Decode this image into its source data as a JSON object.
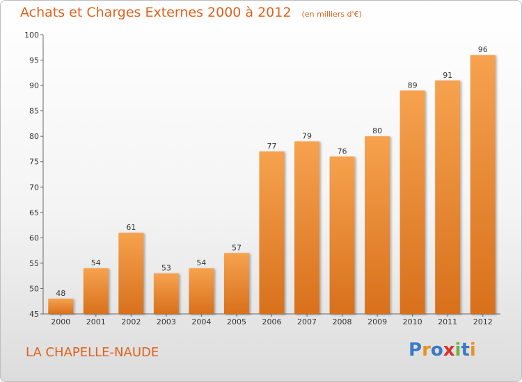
{
  "title": "Achats et Charges Externes 2000 à 2012",
  "unit": "(en milliers d'€)",
  "place": "LA CHAPELLE-NAUDE",
  "logo": {
    "text": "Proxiti",
    "letters": [
      {
        "ch": "P",
        "color": "#3a78c9"
      },
      {
        "ch": "r",
        "color": "#e8931f"
      },
      {
        "ch": "o",
        "color": "#3a78c9"
      },
      {
        "ch": "x",
        "color": "#d8322a"
      },
      {
        "ch": "i",
        "color": "#6cb33f"
      },
      {
        "ch": "t",
        "color": "#3a78c9"
      },
      {
        "ch": "i",
        "color": "#e8931f"
      }
    ]
  },
  "colors": {
    "accent": "#e0611b",
    "bar_top": "#f6a24e",
    "bar_bottom": "#d8701c"
  },
  "chart_data": {
    "type": "bar",
    "title": "Achats et Charges Externes 2000 à 2012",
    "categories": [
      "2000",
      "2001",
      "2002",
      "2003",
      "2004",
      "2005",
      "2006",
      "2007",
      "2008",
      "2009",
      "2010",
      "2011",
      "2012"
    ],
    "values": [
      48,
      54,
      61,
      53,
      54,
      57,
      77,
      79,
      76,
      80,
      89,
      91,
      96
    ],
    "ylim": [
      45,
      100
    ],
    "yticks": [
      45,
      50,
      55,
      60,
      65,
      70,
      75,
      80,
      85,
      90,
      95,
      100
    ],
    "grid": false,
    "xlabel": "",
    "ylabel": ""
  }
}
